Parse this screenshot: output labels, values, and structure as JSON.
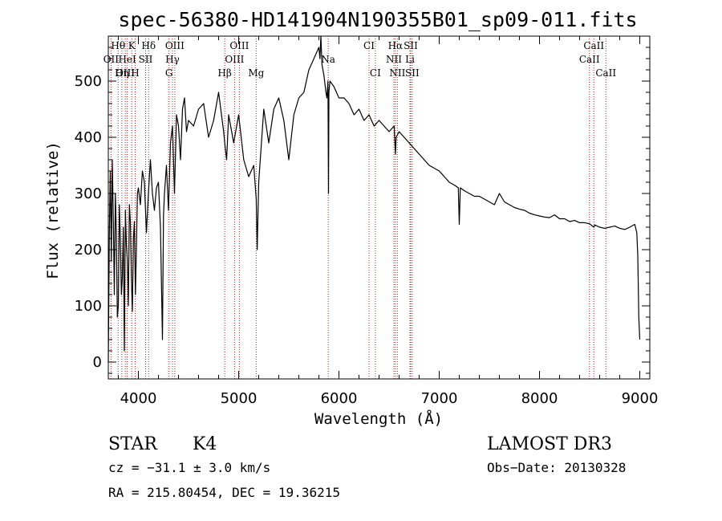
{
  "chart_data": {
    "type": "line",
    "title": "spec-56380-HD141904N190355B01_sp09-011.fits",
    "xlabel": "Wavelength (Å)",
    "ylabel": "Flux (relative)",
    "xlim": [
      3700,
      9100
    ],
    "ylim": [
      -30,
      580
    ],
    "xticks": [
      4000,
      5000,
      6000,
      7000,
      8000,
      9000
    ],
    "yticks": [
      0,
      100,
      200,
      300,
      400,
      500
    ],
    "series": [
      {
        "name": "spectrum",
        "x": [
          3700,
          3710,
          3720,
          3730,
          3740,
          3750,
          3760,
          3770,
          3780,
          3790,
          3800,
          3810,
          3820,
          3830,
          3840,
          3850,
          3860,
          3870,
          3880,
          3890,
          3900,
          3910,
          3920,
          3930,
          3940,
          3950,
          3960,
          3970,
          3980,
          3990,
          4000,
          4020,
          4040,
          4060,
          4080,
          4100,
          4120,
          4140,
          4160,
          4180,
          4200,
          4220,
          4240,
          4250,
          4260,
          4280,
          4300,
          4320,
          4340,
          4360,
          4380,
          4400,
          4420,
          4440,
          4460,
          4480,
          4500,
          4550,
          4600,
          4650,
          4700,
          4750,
          4800,
          4850,
          4861,
          4880,
          4900,
          4950,
          5000,
          5050,
          5100,
          5150,
          5175,
          5185,
          5200,
          5250,
          5300,
          5350,
          5400,
          5450,
          5500,
          5550,
          5600,
          5650,
          5700,
          5750,
          5800,
          5810,
          5820,
          5830,
          5850,
          5870,
          5880,
          5890,
          5896,
          5900,
          5910,
          5950,
          6000,
          6050,
          6100,
          6150,
          6200,
          6250,
          6300,
          6350,
          6400,
          6450,
          6500,
          6550,
          6563,
          6570,
          6600,
          6650,
          6700,
          6750,
          6800,
          6850,
          6900,
          6950,
          7000,
          7050,
          7100,
          7150,
          7190,
          7200,
          7210,
          7250,
          7300,
          7350,
          7400,
          7450,
          7500,
          7550,
          7600,
          7650,
          7700,
          7750,
          7800,
          7850,
          7900,
          7950,
          8000,
          8050,
          8100,
          8150,
          8200,
          8250,
          8300,
          8350,
          8400,
          8450,
          8500,
          8542,
          8550,
          8600,
          8650,
          8700,
          8750,
          8800,
          8850,
          8900,
          8950,
          8970,
          8980,
          8990,
          9000
        ],
        "values": [
          0,
          230,
          340,
          180,
          360,
          250,
          120,
          300,
          230,
          80,
          100,
          280,
          220,
          120,
          150,
          240,
          20,
          270,
          210,
          180,
          100,
          280,
          250,
          150,
          90,
          220,
          250,
          120,
          200,
          300,
          310,
          280,
          340,
          320,
          230,
          300,
          360,
          300,
          270,
          310,
          320,
          240,
          40,
          260,
          300,
          350,
          270,
          390,
          420,
          300,
          440,
          420,
          360,
          450,
          470,
          410,
          430,
          420,
          450,
          460,
          400,
          430,
          480,
          410,
          390,
          360,
          440,
          390,
          440,
          360,
          330,
          350,
          290,
          200,
          320,
          450,
          390,
          450,
          470,
          430,
          360,
          440,
          470,
          480,
          520,
          540,
          560,
          540,
          580,
          530,
          510,
          480,
          470,
          500,
          300,
          480,
          500,
          490,
          470,
          470,
          460,
          440,
          450,
          430,
          440,
          420,
          430,
          420,
          410,
          420,
          370,
          400,
          410,
          400,
          390,
          380,
          370,
          360,
          350,
          345,
          340,
          330,
          320,
          315,
          310,
          245,
          310,
          305,
          300,
          295,
          295,
          290,
          285,
          280,
          300,
          285,
          280,
          275,
          272,
          270,
          265,
          262,
          260,
          258,
          257,
          262,
          255,
          255,
          250,
          252,
          248,
          248,
          246,
          240,
          244,
          240,
          238,
          240,
          242,
          238,
          236,
          240,
          245,
          230,
          190,
          80,
          40
        ]
      }
    ],
    "line_markers": [
      {
        "label": "Hθ",
        "wavelength": 3798,
        "row": 0
      },
      {
        "label": "K",
        "wavelength": 3934,
        "row": 0
      },
      {
        "label": "Hδ",
        "wavelength": 4102,
        "row": 0
      },
      {
        "label": "OIII",
        "wavelength": 4363,
        "row": 0
      },
      {
        "label": "OIII",
        "wavelength": 5007,
        "row": 0
      },
      {
        "label": "CI",
        "wavelength": 6300,
        "row": 0
      },
      {
        "label": "Hα",
        "wavelength": 6563,
        "row": 0
      },
      {
        "label": "SII",
        "wavelength": 6716,
        "row": 0
      },
      {
        "label": "CaII",
        "wavelength": 8542,
        "row": 0
      },
      {
        "label": "OII",
        "wavelength": 3727,
        "row": 1
      },
      {
        "label": "HeI",
        "wavelength": 3889,
        "row": 1
      },
      {
        "label": "SII",
        "wavelength": 4072,
        "row": 1
      },
      {
        "label": "Hγ",
        "wavelength": 4340,
        "row": 1
      },
      {
        "label": "OIII",
        "wavelength": 4959,
        "row": 1
      },
      {
        "label": "Na",
        "wavelength": 5893,
        "row": 1
      },
      {
        "label": "NII",
        "wavelength": 6548,
        "row": 1
      },
      {
        "label": "Li",
        "wavelength": 6708,
        "row": 1
      },
      {
        "label": "CaII",
        "wavelength": 8498,
        "row": 1
      },
      {
        "label": "OIII",
        "wavelength": 3869,
        "row": 2
      },
      {
        "label": "Hη",
        "wavelength": 3835,
        "row": 2
      },
      {
        "label": "H",
        "wavelength": 3968,
        "row": 2
      },
      {
        "label": "G",
        "wavelength": 4305,
        "row": 2
      },
      {
        "label": "Hβ",
        "wavelength": 4861,
        "row": 2
      },
      {
        "label": "Mg",
        "wavelength": 5175,
        "row": 2
      },
      {
        "label": "CI",
        "wavelength": 6363,
        "row": 2
      },
      {
        "label": "NII",
        "wavelength": 6583,
        "row": 2
      },
      {
        "label": "SII",
        "wavelength": 6731,
        "row": 2
      },
      {
        "label": "CaII",
        "wavelength": 8662,
        "row": 2
      }
    ]
  },
  "info": {
    "class": "STAR",
    "subclass": "K4",
    "survey": "LAMOST DR3",
    "cz": "cz = −31.1 ± 3.0 km/s",
    "obs_date": "Obs−Date: 20130328",
    "radec": "RA = 215.80454, DEC =  19.36215"
  }
}
